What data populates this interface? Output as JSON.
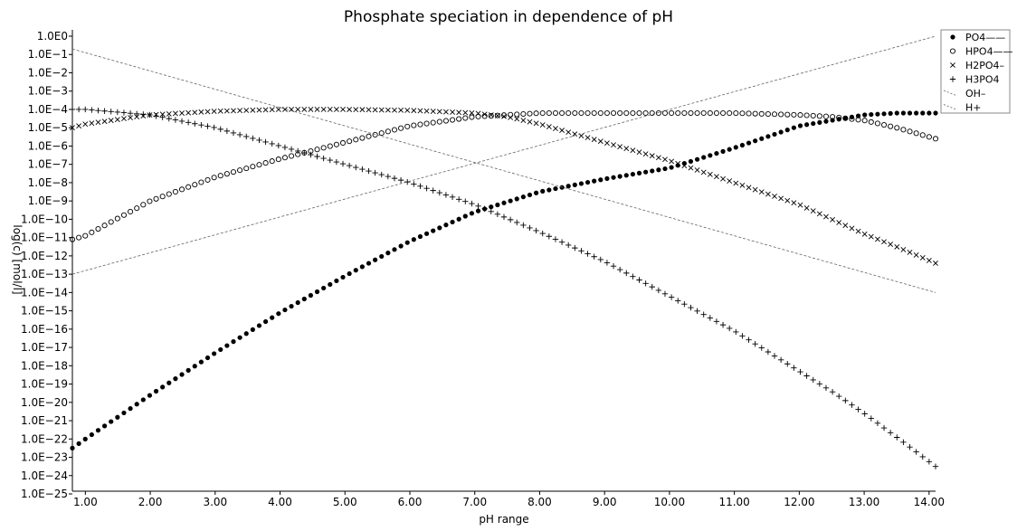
{
  "chart_data": {
    "type": "scatter",
    "title": "Phosphate speciation in dependence of pH",
    "xlabel": "pH range",
    "ylabel": "log(c) [mol/l]",
    "xlim": [
      0.8,
      14.1
    ],
    "x_ticks": [
      1,
      2,
      3,
      4,
      5,
      6,
      7,
      8,
      9,
      10,
      11,
      12,
      13,
      14
    ],
    "x_tick_labels": [
      "1.00",
      "2.00",
      "3.00",
      "4.00",
      "5.00",
      "6.00",
      "7.00",
      "8.00",
      "9.00",
      "10.00",
      "11.00",
      "12.00",
      "13.00",
      "14.00"
    ],
    "y_scale": "log",
    "y_tick_labels": [
      "1.0E0",
      "1.0E−1",
      "1.0E−2",
      "1.0E−3",
      "1.0E−4",
      "1.0E−5",
      "1.0E−6",
      "1.0E−7",
      "1.0E−8",
      "1.0E−9",
      "1.0E−10",
      "1.0E−11",
      "1.0E−12",
      "1.0E−13",
      "1.0E−14",
      "1.0E−15",
      "1.0E−16",
      "1.0E−17",
      "1.0E−18",
      "1.0E−19",
      "1.0E−20",
      "1.0E−21",
      "1.0E−22",
      "1.0E−23",
      "1.0E−24",
      "1.0E−25"
    ],
    "grid": false,
    "legend_position": "top-right",
    "series": [
      {
        "name": "PO4——",
        "marker": "filled-circle",
        "x": [
          0.8,
          1,
          2,
          3,
          4,
          5,
          6,
          7,
          8,
          9,
          10,
          11,
          12,
          12.5,
          13,
          13.5,
          14.1
        ],
        "log10": [
          -22.5,
          -22,
          -19.6,
          -17.3,
          -15.1,
          -13.1,
          -11.2,
          -9.6,
          -8.5,
          -7.8,
          -7.2,
          -6.1,
          -4.9,
          -4.6,
          -4.3,
          -4.2,
          -4.2
        ]
      },
      {
        "name": "HPO4——",
        "marker": "open-circle",
        "x": [
          0.8,
          1,
          2,
          3,
          4,
          5,
          6,
          7,
          8,
          9,
          10,
          11,
          12,
          12.5,
          13,
          13.5,
          14.1
        ],
        "log10": [
          -11.1,
          -10.9,
          -9.0,
          -7.7,
          -6.7,
          -5.8,
          -4.9,
          -4.4,
          -4.2,
          -4.2,
          -4.2,
          -4.2,
          -4.3,
          -4.4,
          -4.6,
          -5.0,
          -5.6
        ]
      },
      {
        "name": "H2PO4–",
        "marker": "cross",
        "x": [
          0.8,
          1,
          2,
          3,
          4,
          5,
          6,
          7,
          7.5,
          8,
          9,
          10,
          11,
          12,
          12.5,
          13,
          13.5,
          14.1
        ],
        "log10": [
          -5.0,
          -4.8,
          -4.3,
          -4.1,
          -4.0,
          -4.0,
          -4.05,
          -4.2,
          -4.4,
          -4.8,
          -5.8,
          -6.8,
          -8.0,
          -9.2,
          -10.0,
          -10.8,
          -11.5,
          -12.4
        ]
      },
      {
        "name": "H3PO4",
        "marker": "plus",
        "x": [
          0.8,
          1,
          2,
          3,
          4,
          5,
          6,
          7,
          8,
          9,
          10,
          11,
          12,
          12.5,
          13,
          13.5,
          14.1
        ],
        "log10": [
          -4.0,
          -4.0,
          -4.3,
          -5.0,
          -6.0,
          -7.0,
          -8.0,
          -9.2,
          -10.7,
          -12.3,
          -14.2,
          -16.1,
          -18.3,
          -19.4,
          -20.6,
          -21.9,
          -23.5
        ]
      },
      {
        "name": "OH–",
        "marker": "dashed-line",
        "x": [
          0.8,
          14.1
        ],
        "log10": [
          -13.0,
          0.0
        ]
      },
      {
        "name": "H+",
        "marker": "dashed-line",
        "x": [
          0.8,
          14.1
        ],
        "log10": [
          -0.7,
          -14.0
        ]
      }
    ]
  }
}
